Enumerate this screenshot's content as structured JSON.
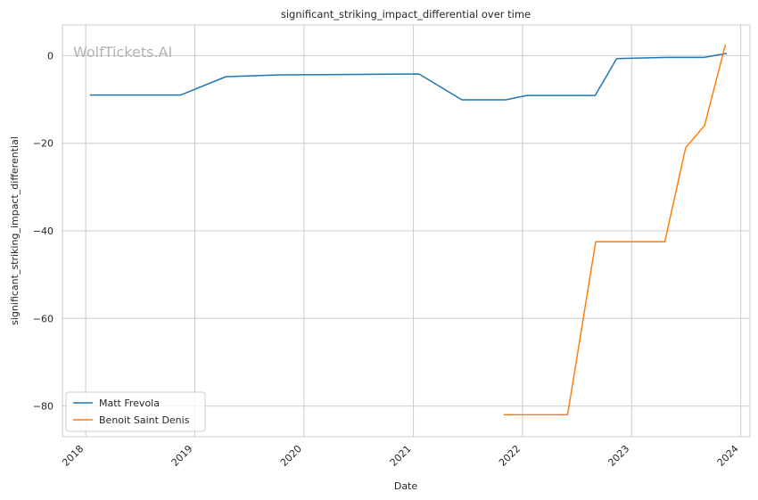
{
  "chart_data": {
    "type": "line",
    "title": "significant_striking_impact_differential over time",
    "xlabel": "Date",
    "ylabel": "significant_striking_impact_differential",
    "watermark": "WolfTickets.AI",
    "xlim": [
      "2017-10-15",
      "2024-02-01"
    ],
    "ylim": [
      -87,
      7
    ],
    "x_ticks": [
      "2018",
      "2019",
      "2020",
      "2021",
      "2022",
      "2023",
      "2024"
    ],
    "y_ticks": [
      0,
      -20,
      -40,
      -60,
      -80
    ],
    "grid": true,
    "legend_position": "lower-left",
    "series": [
      {
        "name": "Matt Frevola",
        "color": "#1f77b4",
        "x": [
          "2018-01-15",
          "2018-11-15",
          "2019-04-15",
          "2019-10-15",
          "2021-01-20",
          "2021-06-12",
          "2021-11-06",
          "2022-01-15",
          "2022-09-01",
          "2022-11-12",
          "2023-05-01",
          "2023-09-01",
          "2023-11-15"
        ],
        "y": [
          -9,
          -9,
          -4.8,
          -4.4,
          -4.2,
          -10.1,
          -10.1,
          -9.1,
          -9.1,
          -0.7,
          -0.4,
          -0.4,
          0.5
        ]
      },
      {
        "name": "Benoit Saint Denis",
        "color": "#ff7f0e",
        "x": [
          "2021-10-30",
          "2022-06-01",
          "2022-09-03",
          "2023-04-22",
          "2023-07-01",
          "2023-09-02",
          "2023-11-11"
        ],
        "y": [
          -82,
          -82,
          -42.5,
          -42.5,
          -21,
          -16,
          2.5
        ]
      }
    ]
  }
}
